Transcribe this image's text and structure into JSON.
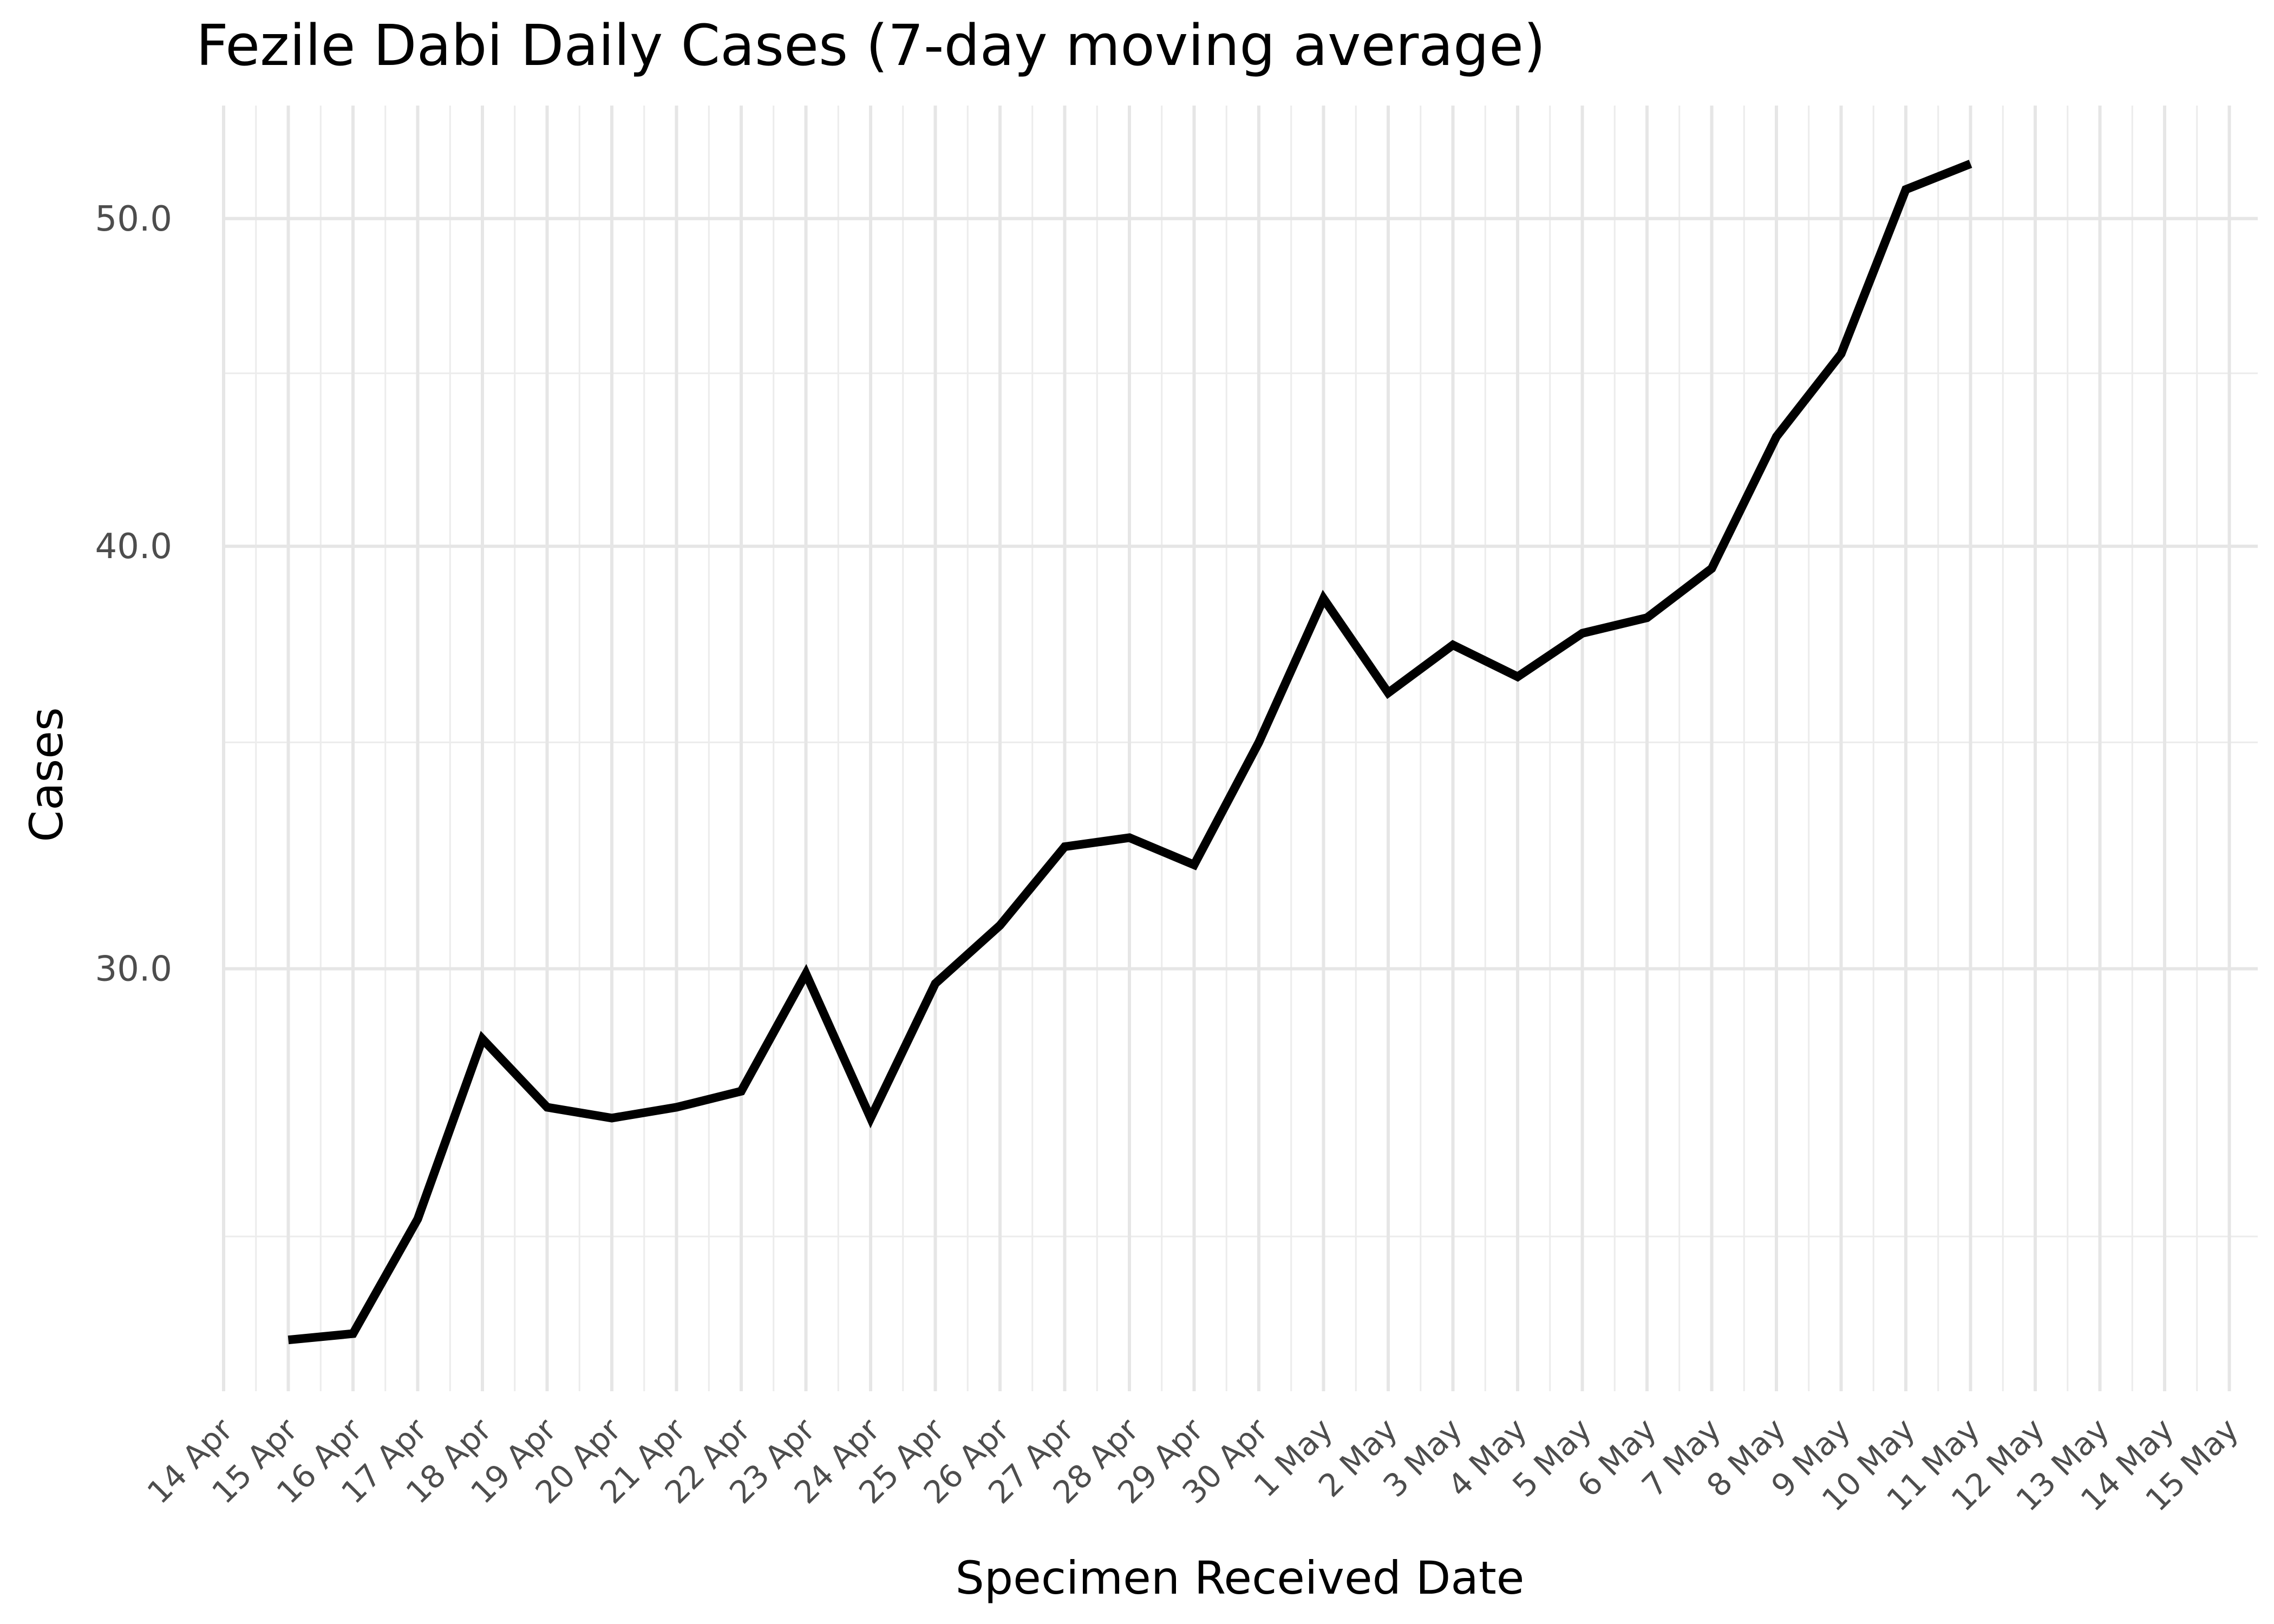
{
  "chart_data": {
    "type": "line",
    "title": "Fezile Dabi Daily Cases (7-day moving average)",
    "xlabel": "Specimen Received Date",
    "ylabel": "Cases",
    "x_tick_labels": [
      "14 Apr",
      "15 Apr",
      "16 Apr",
      "17 Apr",
      "18 Apr",
      "19 Apr",
      "20 Apr",
      "21 Apr",
      "22 Apr",
      "23 Apr",
      "24 Apr",
      "25 Apr",
      "26 Apr",
      "27 Apr",
      "28 Apr",
      "29 Apr",
      "30 Apr",
      "1 May",
      "2 May",
      "3 May",
      "4 May",
      "5 May",
      "6 May",
      "7 May",
      "8 May",
      "9 May",
      "10 May",
      "11 May",
      "12 May",
      "13 May",
      "14 May",
      "15 May"
    ],
    "y_ticks": [
      30,
      40,
      50
    ],
    "y_tick_labels": [
      "30.0",
      "40.0",
      "50.0"
    ],
    "y_scale": "log",
    "ylim": [
      22.5,
      54.0
    ],
    "grid": true,
    "series": [
      {
        "color": "#000000",
        "x": [
          "15 Apr",
          "16 Apr",
          "17 Apr",
          "18 Apr",
          "19 Apr",
          "20 Apr",
          "21 Apr",
          "22 Apr",
          "23 Apr",
          "24 Apr",
          "25 Apr",
          "26 Apr",
          "27 Apr",
          "28 Apr",
          "29 Apr",
          "30 Apr",
          "1 May",
          "2 May",
          "3 May",
          "4 May",
          "5 May",
          "6 May",
          "7 May",
          "8 May",
          "9 May",
          "10 May",
          "11 May"
        ],
        "values": [
          23.3,
          23.4,
          25.3,
          28.6,
          27.3,
          27.1,
          27.3,
          27.6,
          29.9,
          27.1,
          29.7,
          30.9,
          32.6,
          32.8,
          32.2,
          35.0,
          38.6,
          36.2,
          37.4,
          36.6,
          37.7,
          38.1,
          39.4,
          43.1,
          45.6,
          51.0,
          51.9
        ]
      }
    ]
  }
}
